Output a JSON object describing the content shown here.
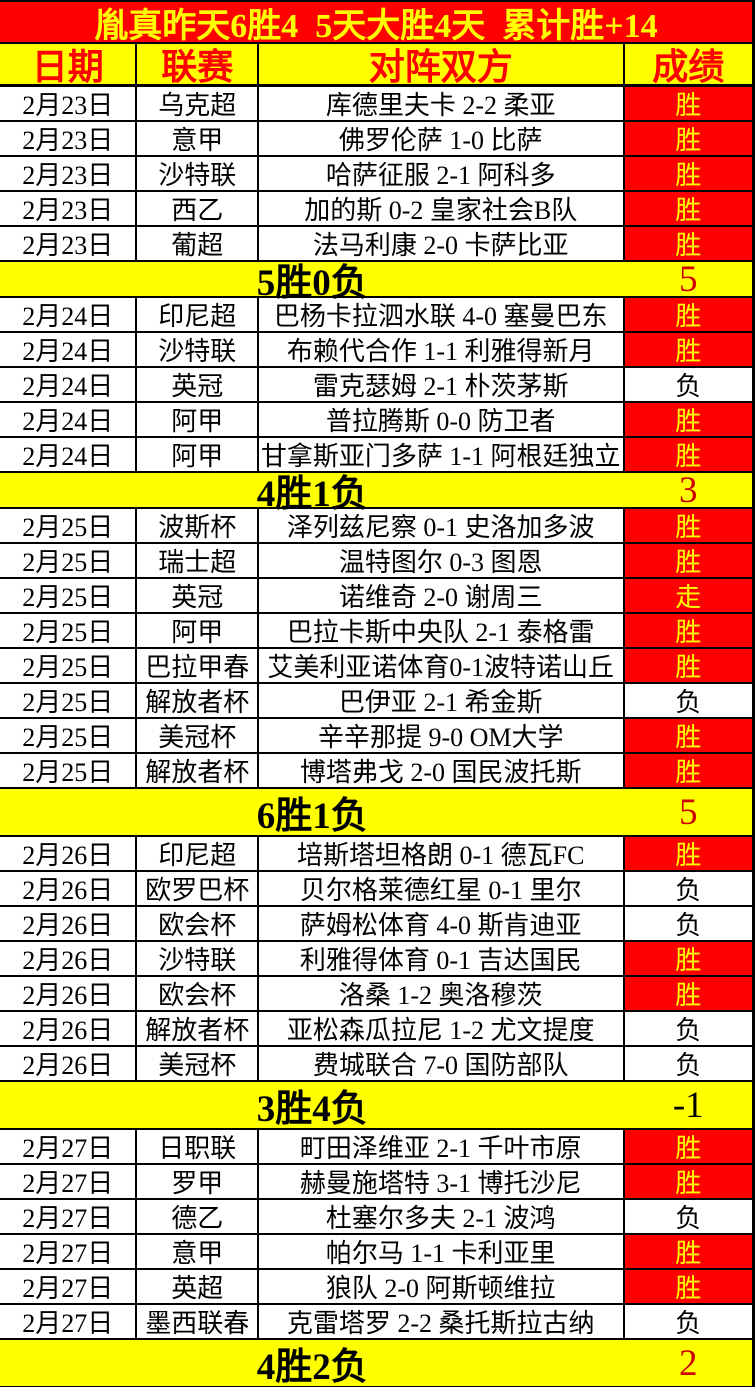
{
  "title": "胤真昨天6胜4  5天大胜4天  累计胜+14",
  "header": {
    "date": "日期",
    "league": "联赛",
    "match": "对阵双方",
    "result": "成绩"
  },
  "colors": {
    "title_bg": "#ff0000",
    "title_text": "#ffff00",
    "header_bg": "#ffff00",
    "header_text": "#ff0000",
    "win_bg": "#ff0000",
    "win_text": "#ffff00",
    "loss_bg": "#ffffff",
    "loss_text": "#000000",
    "summary_bg": "#ffff00",
    "summary_positive": "#cc0000",
    "summary_negative": "#000000"
  },
  "sections": [
    {
      "rows": [
        {
          "date": "2月23日",
          "league": "乌克超",
          "match": "库德里夫卡 2-2 柔亚",
          "result": "胜",
          "status": "win"
        },
        {
          "date": "2月23日",
          "league": "意甲",
          "match": "佛罗伦萨 1-0 比萨",
          "result": "胜",
          "status": "win"
        },
        {
          "date": "2月23日",
          "league": "沙特联",
          "match": "哈萨征服 2-1 阿科多",
          "result": "胜",
          "status": "win"
        },
        {
          "date": "2月23日",
          "league": "西乙",
          "match": "加的斯 0-2 皇家社会B队",
          "result": "胜",
          "status": "win"
        },
        {
          "date": "2月23日",
          "league": "葡超",
          "match": "法马利康 2-0 卡萨比亚",
          "result": "胜",
          "status": "win"
        }
      ],
      "summary": {
        "label": "5胜0负",
        "value": "5",
        "value_color": "#cc0000"
      }
    },
    {
      "rows": [
        {
          "date": "2月24日",
          "league": "印尼超",
          "match": "巴杨卡拉泗水联 4-0 塞曼巴东",
          "result": "胜",
          "status": "win"
        },
        {
          "date": "2月24日",
          "league": "沙特联",
          "match": "布赖代合作 1-1 利雅得新月",
          "result": "胜",
          "status": "win"
        },
        {
          "date": "2月24日",
          "league": "英冠",
          "match": "雷克瑟姆 2-1 朴茨茅斯",
          "result": "负",
          "status": "loss"
        },
        {
          "date": "2月24日",
          "league": "阿甲",
          "match": "普拉腾斯 0-0 防卫者",
          "result": "胜",
          "status": "win"
        },
        {
          "date": "2月24日",
          "league": "阿甲",
          "match": "甘拿斯亚门多萨 1-1 阿根廷独立",
          "result": "胜",
          "status": "win"
        }
      ],
      "summary": {
        "label": "4胜1负",
        "value": "3",
        "value_color": "#cc0000"
      }
    },
    {
      "rows": [
        {
          "date": "2月25日",
          "league": "波斯杯",
          "match": "泽列兹尼察 0-1 史洛加多波",
          "result": "胜",
          "status": "win"
        },
        {
          "date": "2月25日",
          "league": "瑞士超",
          "match": "温特图尔 0-3 图恩",
          "result": "胜",
          "status": "win"
        },
        {
          "date": "2月25日",
          "league": "英冠",
          "match": "诺维奇 2-0 谢周三",
          "result": "走",
          "status": "push"
        },
        {
          "date": "2月25日",
          "league": "阿甲",
          "match": "巴拉卡斯中央队 2-1 泰格雷",
          "result": "胜",
          "status": "win"
        },
        {
          "date": "2月25日",
          "league": "巴拉甲春",
          "match": "艾美利亚诺体育0-1波特诺山丘",
          "result": "胜",
          "status": "win"
        },
        {
          "date": "2月25日",
          "league": "解放者杯",
          "match": "巴伊亚 2-1 希金斯",
          "result": "负",
          "status": "loss"
        },
        {
          "date": "2月25日",
          "league": "美冠杯",
          "match": "辛辛那提 9-0 OM大学",
          "result": "胜",
          "status": "win"
        },
        {
          "date": "2月25日",
          "league": "解放者杯",
          "match": "博塔弗戈 2-0 国民波托斯",
          "result": "胜",
          "status": "win"
        }
      ],
      "summary": {
        "label": "6胜1负",
        "value": "5",
        "value_color": "#cc0000"
      }
    },
    {
      "rows": [
        {
          "date": "2月26日",
          "league": "印尼超",
          "match": "培斯塔坦格朗 0-1 德瓦FC",
          "result": "胜",
          "status": "win"
        },
        {
          "date": "2月26日",
          "league": "欧罗巴杯",
          "match": "贝尔格莱德红星 0-1 里尔",
          "result": "负",
          "status": "loss"
        },
        {
          "date": "2月26日",
          "league": "欧会杯",
          "match": "萨姆松体育 4-0 斯肯迪亚",
          "result": "负",
          "status": "loss"
        },
        {
          "date": "2月26日",
          "league": "沙特联",
          "match": "利雅得体育 0-1 吉达国民",
          "result": "胜",
          "status": "win"
        },
        {
          "date": "2月26日",
          "league": "欧会杯",
          "match": "洛桑 1-2 奥洛穆茨",
          "result": "胜",
          "status": "win"
        },
        {
          "date": "2月26日",
          "league": "解放者杯",
          "match": "亚松森瓜拉尼 1-2 尤文提度",
          "result": "负",
          "status": "loss"
        },
        {
          "date": "2月26日",
          "league": "美冠杯",
          "match": "费城联合 7-0 国防部队",
          "result": "负",
          "status": "loss"
        }
      ],
      "summary": {
        "label": "3胜4负",
        "value": "-1",
        "value_color": "#000000"
      }
    },
    {
      "rows": [
        {
          "date": "2月27日",
          "league": "日职联",
          "match": "町田泽维亚 2-1 千叶市原",
          "result": "胜",
          "status": "win"
        },
        {
          "date": "2月27日",
          "league": "罗甲",
          "match": "赫曼施塔特 3-1 博托沙尼",
          "result": "胜",
          "status": "win"
        },
        {
          "date": "2月27日",
          "league": "德乙",
          "match": "杜塞尔多夫 2-1 波鸿",
          "result": "负",
          "status": "loss"
        },
        {
          "date": "2月27日",
          "league": "意甲",
          "match": "帕尔马 1-1 卡利亚里",
          "result": "胜",
          "status": "win"
        },
        {
          "date": "2月27日",
          "league": "英超",
          "match": "狼队 2-0 阿斯顿维拉",
          "result": "胜",
          "status": "win"
        },
        {
          "date": "2月27日",
          "league": "墨西联春",
          "match": "克雷塔罗 2-2 桑托斯拉古纳",
          "result": "负",
          "status": "loss"
        }
      ],
      "summary": {
        "label": "4胜2负",
        "value": "2",
        "value_color": "#cc0000"
      }
    }
  ]
}
